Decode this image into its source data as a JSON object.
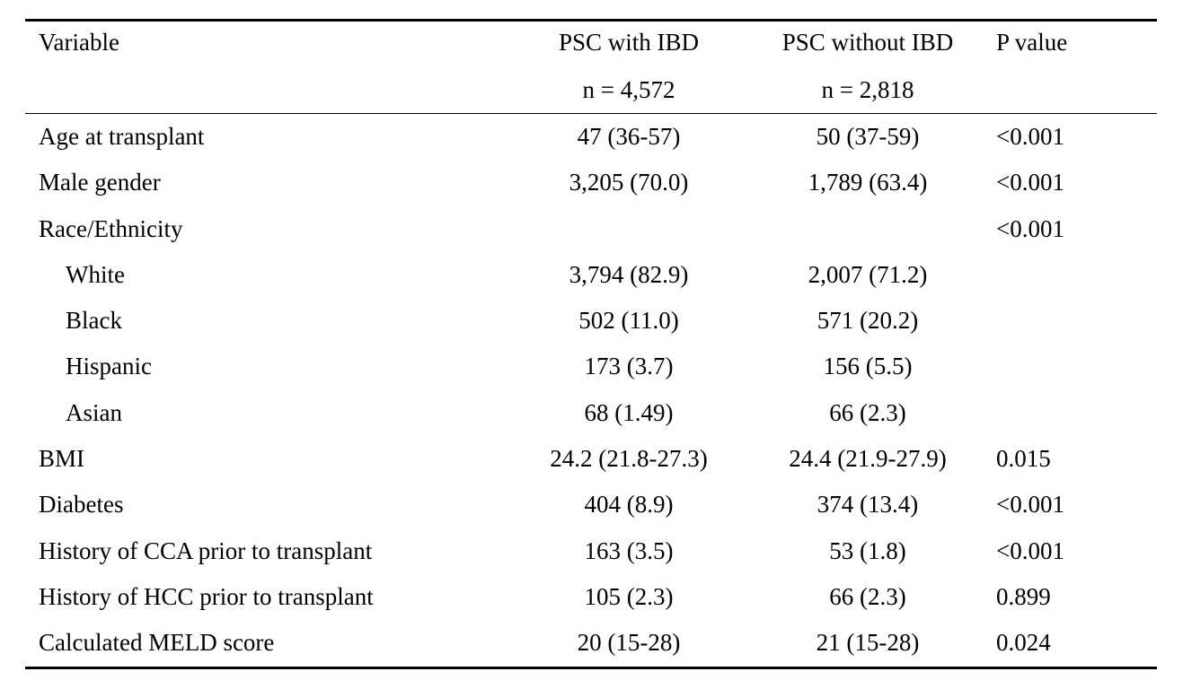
{
  "table": {
    "headers": {
      "variable": "Variable",
      "with_ibd": "PSC with IBD",
      "with_ibd_n": "n = 4,572",
      "without_ibd": "PSC without IBD",
      "without_ibd_n": "n = 2,818",
      "p_value": "P value"
    },
    "rows": [
      {
        "variable": "Age at transplant",
        "with_ibd": "47 (36-57)",
        "without_ibd": "50 (37-59)",
        "p_value": "<0.001"
      },
      {
        "variable": "Male gender",
        "with_ibd": "3,205 (70.0)",
        "without_ibd": "1,789 (63.4)",
        "p_value": "<0.001"
      },
      {
        "variable": "Race/Ethnicity",
        "with_ibd": "",
        "without_ibd": "",
        "p_value": "<0.001"
      },
      {
        "variable": "White",
        "with_ibd": "3,794 (82.9)",
        "without_ibd": "2,007 (71.2)",
        "p_value": ""
      },
      {
        "variable": "Black",
        "with_ibd": "502 (11.0)",
        "without_ibd": "571 (20.2)",
        "p_value": ""
      },
      {
        "variable": "Hispanic",
        "with_ibd": "173 (3.7)",
        "without_ibd": "156 (5.5)",
        "p_value": ""
      },
      {
        "variable": "Asian",
        "with_ibd": "68 (1.49)",
        "without_ibd": "66 (2.3)",
        "p_value": ""
      },
      {
        "variable": "BMI",
        "with_ibd": "24.2 (21.8-27.3)",
        "without_ibd": "24.4 (21.9-27.9)",
        "p_value": "0.015"
      },
      {
        "variable": "Diabetes",
        "with_ibd": "404 (8.9)",
        "without_ibd": "374 (13.4)",
        "p_value": "<0.001"
      },
      {
        "variable": "History of CCA prior to transplant",
        "with_ibd": "163 (3.5)",
        "without_ibd": "53 (1.8)",
        "p_value": "<0.001"
      },
      {
        "variable": "History of HCC prior to transplant",
        "with_ibd": "105 (2.3)",
        "without_ibd": "66 (2.3)",
        "p_value": "0.899"
      },
      {
        "variable": "Calculated MELD score",
        "with_ibd": "20 (15-28)",
        "without_ibd": "21 (15-28)",
        "p_value": "0.024"
      }
    ]
  }
}
